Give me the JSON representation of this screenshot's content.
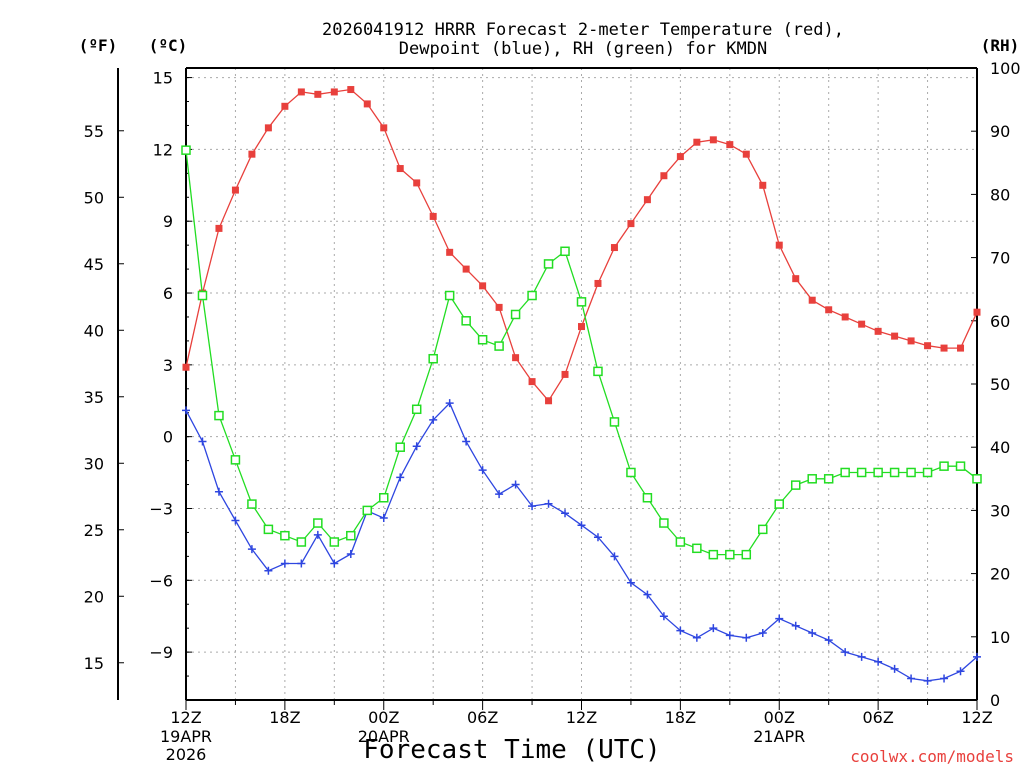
{
  "chart_data": {
    "type": "line",
    "title_line1": "2026041912 HRRR Forecast 2-meter Temperature (red),",
    "title_line2": "Dewpoint (blue), RH (green) for KMDN",
    "xlabel": "Forecast Time (UTC)",
    "credit": "coolwx.com/models",
    "units": {
      "fahrenheit": "(ºF)",
      "celsius": "(ºC)",
      "rh": "(RH)"
    },
    "x_hours": [
      0,
      1,
      2,
      3,
      4,
      5,
      6,
      7,
      8,
      9,
      10,
      11,
      12,
      13,
      14,
      15,
      16,
      17,
      18,
      19,
      20,
      21,
      22,
      23,
      24,
      25,
      26,
      27,
      28,
      29,
      30,
      31,
      32,
      33,
      34,
      35,
      36,
      37,
      38,
      39,
      40,
      41,
      42,
      43,
      44,
      45,
      46,
      47,
      48
    ],
    "x_ticks": [
      {
        "hour": 0,
        "label": "12Z",
        "sub1": "19APR",
        "sub2": "2026"
      },
      {
        "hour": 6,
        "label": "18Z",
        "sub1": "",
        "sub2": ""
      },
      {
        "hour": 12,
        "label": "00Z",
        "sub1": "20APR",
        "sub2": ""
      },
      {
        "hour": 18,
        "label": "06Z",
        "sub1": "",
        "sub2": ""
      },
      {
        "hour": 24,
        "label": "12Z",
        "sub1": "",
        "sub2": ""
      },
      {
        "hour": 30,
        "label": "18Z",
        "sub1": "",
        "sub2": ""
      },
      {
        "hour": 36,
        "label": "00Z",
        "sub1": "21APR",
        "sub2": ""
      },
      {
        "hour": 42,
        "label": "06Z",
        "sub1": "",
        "sub2": ""
      },
      {
        "hour": 48,
        "label": "12Z",
        "sub1": "",
        "sub2": ""
      }
    ],
    "xlim": [
      0,
      48
    ],
    "ylim_c": [
      -11,
      15.4
    ],
    "ylim_rh": [
      0,
      100
    ],
    "celsius_ticks": [
      15,
      12,
      9,
      6,
      3,
      0,
      -3,
      -6,
      -9
    ],
    "celsius_tick_labels": [
      "15",
      "12",
      "9",
      "6",
      "3",
      "0",
      "−3",
      "−6",
      "−9"
    ],
    "fahrenheit_ticks": [
      55,
      50,
      45,
      40,
      35,
      30,
      25,
      20,
      15
    ],
    "rh_ticks": [
      0,
      10,
      20,
      30,
      40,
      50,
      60,
      70,
      80,
      90,
      100
    ],
    "grid": true,
    "series": [
      {
        "key": "temp",
        "color": "#e8403c",
        "marker": "filled-square",
        "axis": "celsius",
        "values": [
          2.9,
          6.0,
          8.7,
          10.3,
          11.8,
          12.9,
          13.8,
          14.4,
          14.3,
          14.4,
          14.5,
          13.9,
          12.9,
          11.2,
          10.6,
          9.2,
          7.7,
          7.0,
          6.3,
          5.4,
          3.3,
          2.3,
          1.5,
          2.6,
          4.6,
          6.4,
          7.9,
          8.9,
          9.9,
          10.9,
          11.7,
          12.3,
          12.4,
          12.2,
          11.8,
          10.5,
          8.0,
          6.6,
          5.7,
          5.3,
          5.0,
          4.7,
          4.4,
          4.2,
          4.0,
          3.8,
          3.7,
          3.7,
          5.2
        ]
      },
      {
        "key": "dewpoint",
        "color": "#2e46e0",
        "marker": "plus",
        "axis": "celsius",
        "values": [
          1.1,
          -0.2,
          -2.3,
          -3.5,
          -4.7,
          -5.6,
          -5.3,
          -5.3,
          -4.1,
          -5.3,
          -4.9,
          -3.1,
          -3.4,
          -1.7,
          -0.4,
          0.7,
          1.4,
          -0.2,
          -1.4,
          -2.4,
          -2.0,
          -2.9,
          -2.8,
          -3.2,
          -3.7,
          -4.2,
          -5.0,
          -6.1,
          -6.6,
          -7.5,
          -8.1,
          -8.4,
          -8.0,
          -8.3,
          -8.4,
          -8.2,
          -7.6,
          -7.9,
          -8.2,
          -8.5,
          -9.0,
          -9.2,
          -9.4,
          -9.7,
          -10.1,
          -10.2,
          -10.1,
          -9.8,
          -9.2
        ]
      },
      {
        "key": "rh",
        "color": "#22dd22",
        "marker": "open-square",
        "axis": "rh",
        "values": [
          87,
          64,
          45,
          38,
          31,
          27,
          26,
          25,
          28,
          25,
          26,
          30,
          32,
          40,
          46,
          54,
          64,
          60,
          57,
          56,
          61,
          64,
          69,
          71,
          63,
          52,
          44,
          36,
          32,
          28,
          25,
          24,
          23,
          23,
          23,
          27,
          31,
          34,
          35,
          35,
          36,
          36,
          36,
          36,
          36,
          36,
          37,
          37,
          35
        ]
      }
    ]
  }
}
